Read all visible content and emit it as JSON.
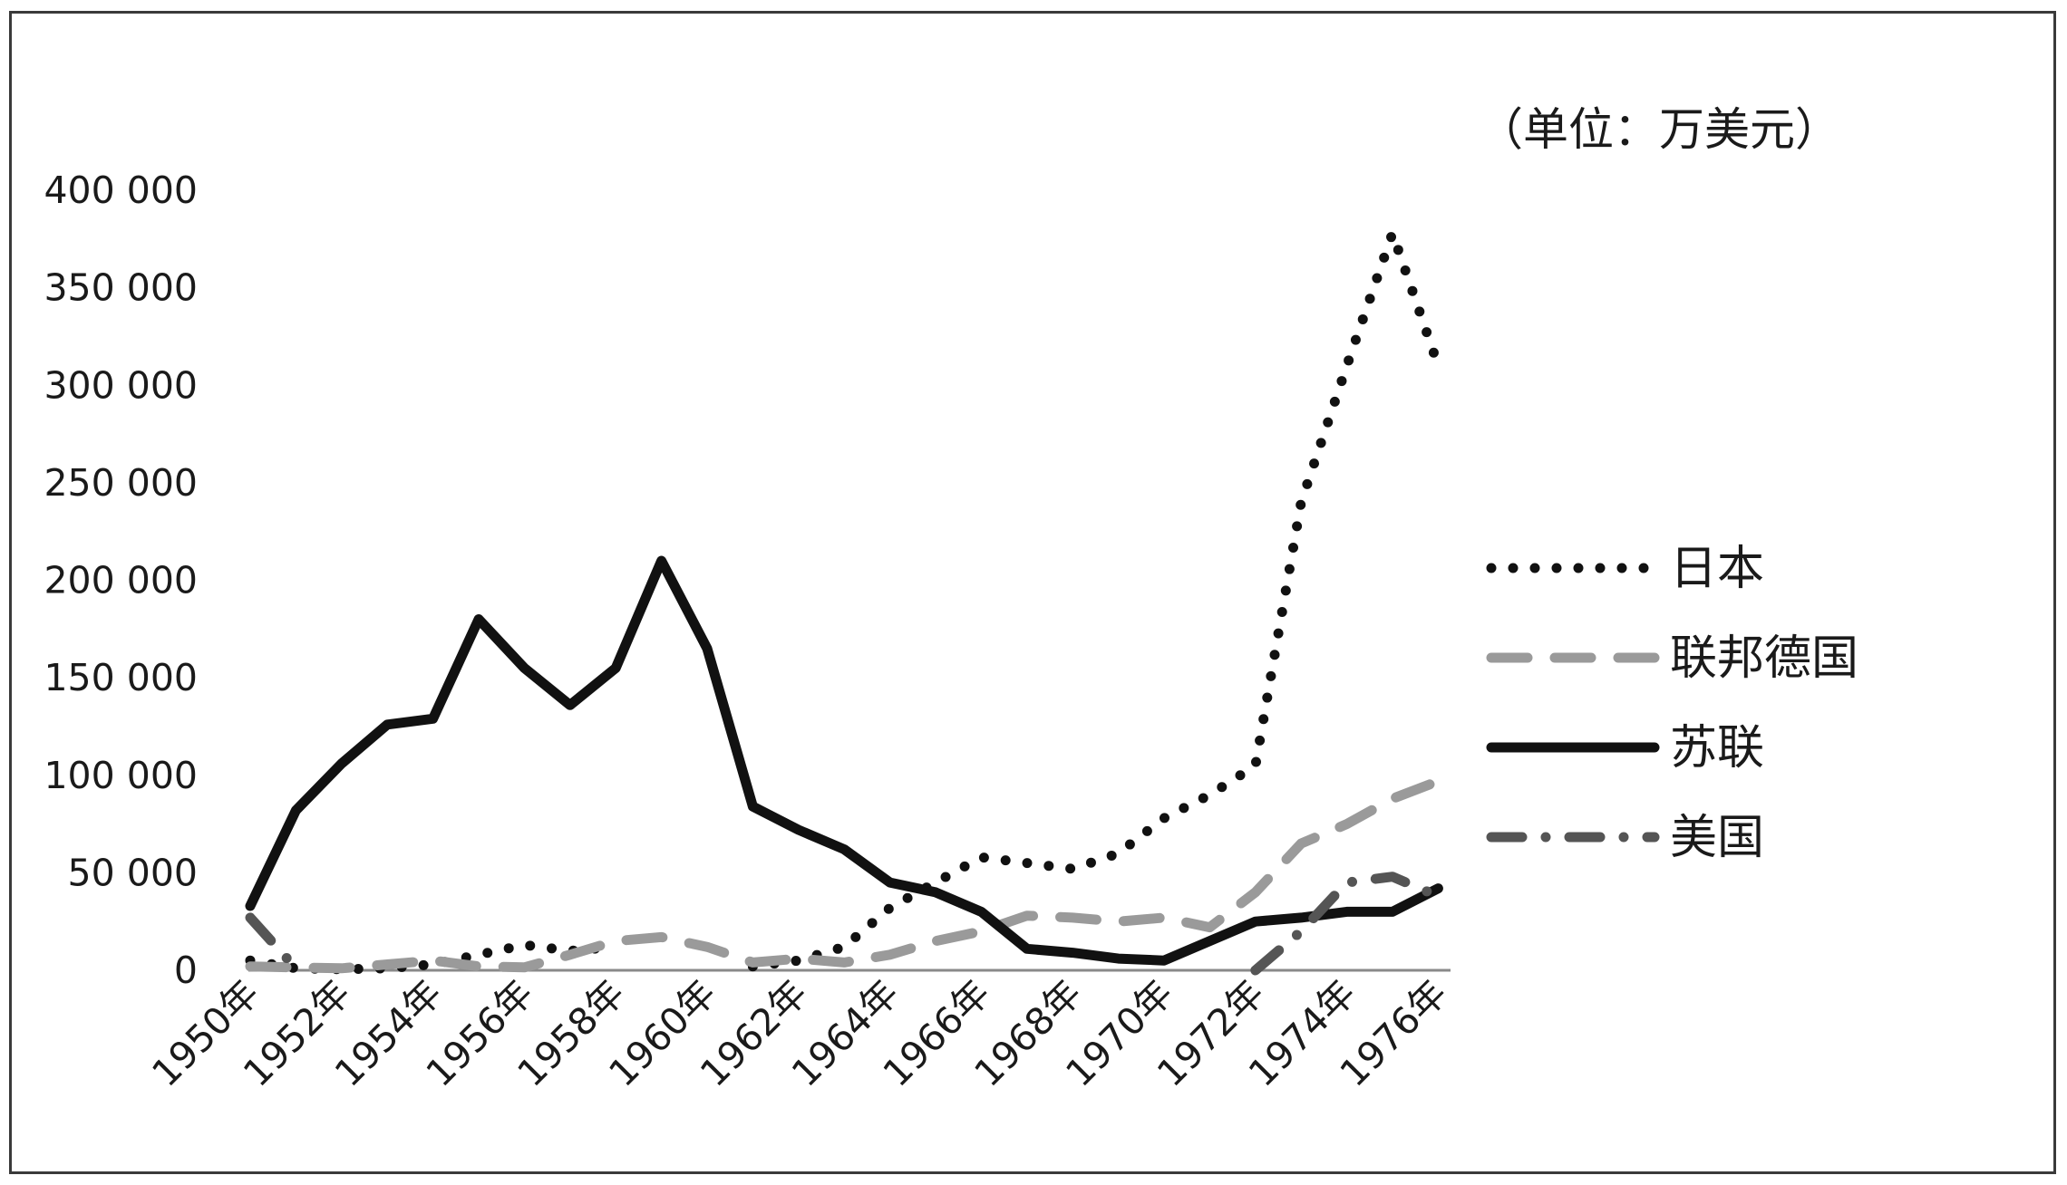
{
  "chart_data": {
    "type": "line",
    "unit_label": "（单位：万美元）",
    "x": [
      1950,
      1951,
      1952,
      1953,
      1954,
      1955,
      1956,
      1957,
      1958,
      1959,
      1960,
      1961,
      1962,
      1963,
      1964,
      1965,
      1966,
      1967,
      1968,
      1969,
      1970,
      1971,
      1972,
      1973,
      1974,
      1975,
      1976
    ],
    "x_tick_labels": [
      "1950年",
      "1952年",
      "1954年",
      "1956年",
      "1958年",
      "1960年",
      "1962年",
      "1964年",
      "1966年",
      "1968年",
      "1970年",
      "1972年",
      "1974年",
      "1976年"
    ],
    "y_tick_labels": [
      "0",
      "50 000",
      "100 000",
      "150 000",
      "200 000",
      "250 000",
      "300 000",
      "350 000",
      "400 000"
    ],
    "ylim": [
      0,
      400000
    ],
    "legend_position": "right",
    "series": [
      {
        "name": "日本",
        "style": "dotted",
        "color": "#111111",
        "values": [
          5000,
          1000,
          500,
          1000,
          3000,
          8000,
          13000,
          10000,
          12000,
          null,
          null,
          2000,
          5000,
          12000,
          32000,
          45000,
          58000,
          55000,
          52000,
          60000,
          78000,
          90000,
          105000,
          240000,
          310000,
          378000,
          310000
        ]
      },
      {
        "name": "联邦德国",
        "style": "dashed",
        "color": "#9a9a9a",
        "values": [
          2000,
          1500,
          1000,
          3000,
          5000,
          2000,
          1500,
          8000,
          15000,
          17000,
          12000,
          4000,
          6000,
          4000,
          8000,
          15000,
          20000,
          28000,
          27000,
          25000,
          27000,
          22000,
          40000,
          65000,
          75000,
          88000,
          97000
        ]
      },
      {
        "name": "苏联",
        "style": "solid",
        "color": "#111111",
        "values": [
          33000,
          82000,
          106000,
          126000,
          129000,
          180000,
          155000,
          136000,
          155000,
          210000,
          165000,
          84000,
          72000,
          62000,
          45000,
          40000,
          30000,
          11000,
          9000,
          6000,
          5000,
          15000,
          25000,
          27000,
          30000,
          30000,
          42000
        ]
      },
      {
        "name": "美国",
        "style": "dashdot",
        "color": "#555555",
        "values": [
          27000,
          1000,
          null,
          null,
          null,
          null,
          null,
          null,
          null,
          null,
          null,
          null,
          null,
          null,
          null,
          null,
          null,
          null,
          null,
          null,
          null,
          null,
          0,
          20000,
          45000,
          48000,
          38000
        ]
      }
    ]
  }
}
